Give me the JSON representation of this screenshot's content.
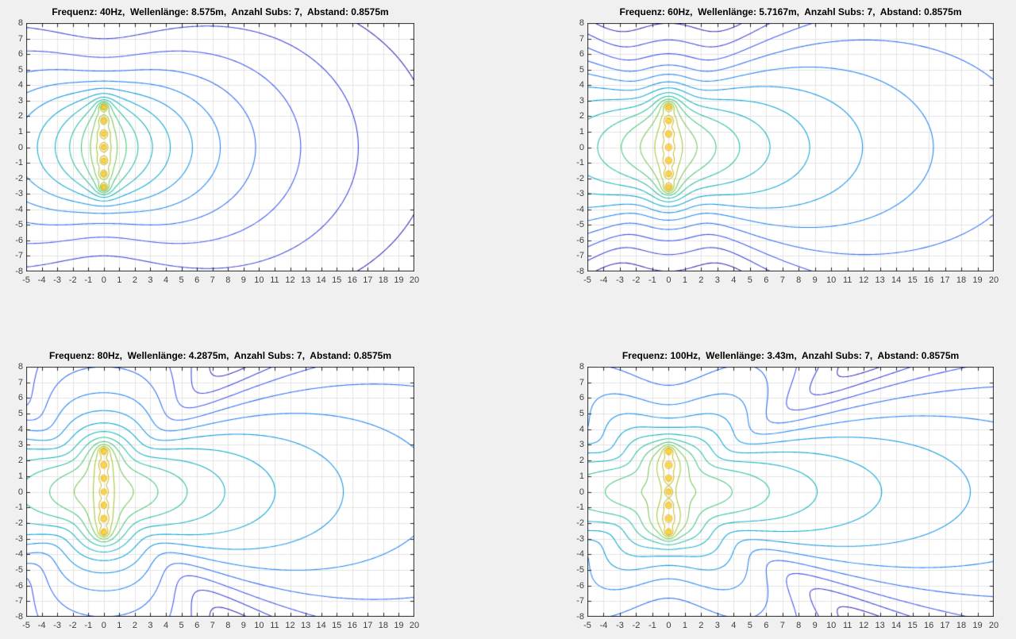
{
  "figure": {
    "background": "#f0f0f0",
    "plot_background": "#ffffff",
    "axis_color": "#262626",
    "grid_color": "#e3e3e3",
    "tick_label_color": "#3f3f3f",
    "title_color": "#000000"
  },
  "axes": {
    "xticks": [
      -5,
      -4,
      -3,
      -2,
      -1,
      0,
      1,
      2,
      3,
      4,
      5,
      6,
      7,
      8,
      9,
      10,
      11,
      12,
      13,
      14,
      15,
      16,
      17,
      18,
      19,
      20
    ],
    "yticks": [
      8,
      7,
      6,
      5,
      4,
      3,
      2,
      1,
      0,
      -1,
      -2,
      -3,
      -4,
      -5,
      -6,
      -7,
      -8
    ],
    "grid": true
  },
  "chart_data": [
    {
      "type": "contour",
      "title": "Frequenz: 40Hz,  Wellenlänge: 8.575m,  Anzahl Subs: 7,  Abstand: 0.8575m",
      "frequenz_hz": 40,
      "wellenlaenge_m": 8.575,
      "anzahl_subs": 7,
      "abstand_m": 0.8575,
      "xlim": [
        -5,
        20
      ],
      "ylim": [
        -8,
        8
      ],
      "num_contour_levels": 18
    },
    {
      "type": "contour",
      "title": "Frequenz: 60Hz,  Wellenlänge: 5.7167m,  Anzahl Subs: 7,  Abstand: 0.8575m",
      "frequenz_hz": 60,
      "wellenlaenge_m": 5.7167,
      "anzahl_subs": 7,
      "abstand_m": 0.8575,
      "xlim": [
        -5,
        20
      ],
      "ylim": [
        -8,
        8
      ],
      "num_contour_levels": 18
    },
    {
      "type": "contour",
      "title": "Frequenz: 80Hz,  Wellenlänge: 4.2875m,  Anzahl Subs: 7,  Abstand: 0.8575m",
      "frequenz_hz": 80,
      "wellenlaenge_m": 4.2875,
      "anzahl_subs": 7,
      "abstand_m": 0.8575,
      "xlim": [
        -5,
        20
      ],
      "ylim": [
        -8,
        8
      ],
      "num_contour_levels": 18
    },
    {
      "type": "contour",
      "title": "Frequenz: 100Hz,  Wellenlänge: 3.43m,  Anzahl Subs: 7,  Abstand: 0.8575m",
      "frequenz_hz": 100,
      "wellenlaenge_m": 3.43,
      "anzahl_subs": 7,
      "abstand_m": 0.8575,
      "xlim": [
        -5,
        20
      ],
      "ylim": [
        -8,
        8
      ],
      "num_contour_levels": 18
    }
  ],
  "render": {
    "grid_step_m": 0.1,
    "r_clip_m": 0.04,
    "colormap": {
      "name": "parula",
      "stops": [
        {
          "t": 0.0,
          "color": "#3e26a8"
        },
        {
          "t": 0.125,
          "color": "#4657f0"
        },
        {
          "t": 0.25,
          "color": "#2889f5"
        },
        {
          "t": 0.375,
          "color": "#0fadd2"
        },
        {
          "t": 0.5,
          "color": "#39c698"
        },
        {
          "t": 0.625,
          "color": "#9fca40"
        },
        {
          "t": 0.75,
          "color": "#eeb830"
        },
        {
          "t": 0.875,
          "color": "#fbcd2d"
        },
        {
          "t": 1.0,
          "color": "#f9fb15"
        }
      ]
    }
  }
}
